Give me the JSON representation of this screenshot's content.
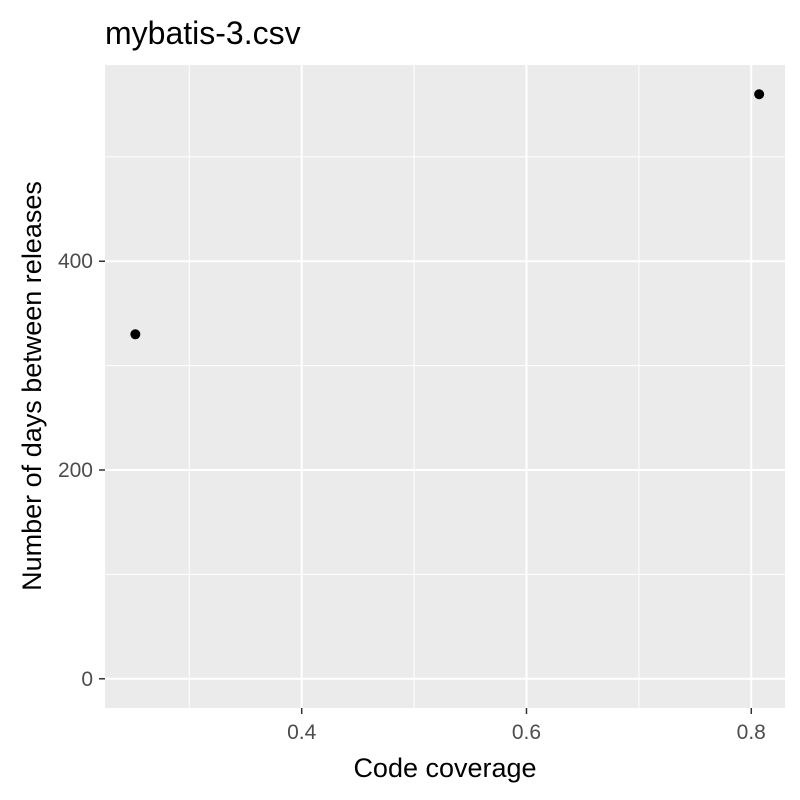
{
  "chart_data": {
    "type": "scatter",
    "title": "mybatis-3.csv",
    "xlabel": "Code coverage",
    "ylabel": "Number of days between releases",
    "xlim": [
      0.225,
      0.83
    ],
    "ylim": [
      -28,
      588
    ],
    "x_ticks": [
      0.4,
      0.6,
      0.8
    ],
    "x_tick_labels": [
      "0.4",
      "0.6",
      "0.8"
    ],
    "x_minor_ticks": [
      0.3,
      0.5,
      0.7
    ],
    "y_ticks": [
      0,
      200,
      400
    ],
    "y_tick_labels": [
      "0",
      "200",
      "400"
    ],
    "y_minor_ticks": [
      100,
      300,
      500
    ],
    "grid": true,
    "background": "#ebebeb",
    "point_color": "#000000",
    "points": [
      {
        "x": 0.252,
        "y": 330
      },
      {
        "x": 0.807,
        "y": 560
      }
    ]
  }
}
